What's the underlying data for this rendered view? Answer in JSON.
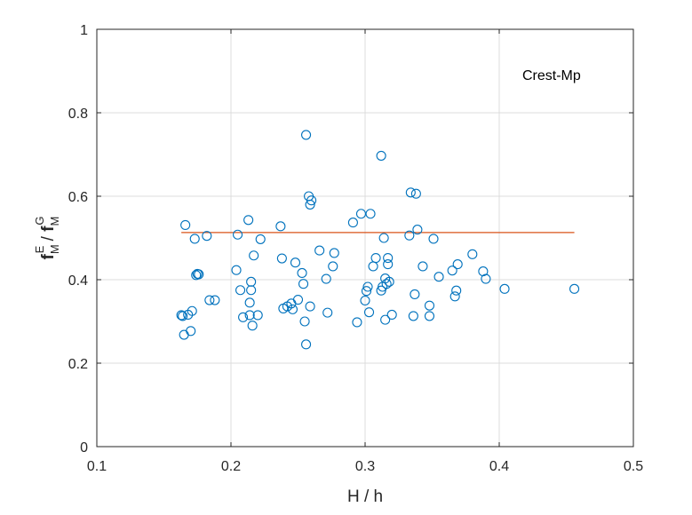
{
  "chart_data": {
    "type": "scatter",
    "xlabel": "H / h",
    "ylabel": {
      "base": "f",
      "sub1": "M",
      "sup1": "E",
      "slash": " / ",
      "sub2": "M",
      "sup2": "G"
    },
    "annotation": "Crest-Mp",
    "xlim": [
      0.1,
      0.5
    ],
    "ylim": [
      0,
      1
    ],
    "xticks": [
      0.1,
      0.2,
      0.3,
      0.4,
      0.5
    ],
    "xtick_labels": [
      "0.1",
      "0.2",
      "0.3",
      "0.4",
      "0.5"
    ],
    "yticks": [
      0,
      0.2,
      0.4,
      0.6,
      0.8,
      1
    ],
    "ytick_labels": [
      "0",
      "0.2",
      "0.4",
      "0.6",
      "0.8",
      "1"
    ],
    "grid": true,
    "colors": {
      "markers": "#0072BD",
      "line": "#D95319",
      "grid": "#dcdcdc",
      "axis": "#262626"
    },
    "fit_line": {
      "x": [
        0.163,
        0.456
      ],
      "y": [
        0.513,
        0.513
      ]
    },
    "points": [
      [
        0.163,
        0.315
      ],
      [
        0.164,
        0.313
      ],
      [
        0.165,
        0.268
      ],
      [
        0.166,
        0.531
      ],
      [
        0.168,
        0.316
      ],
      [
        0.17,
        0.277
      ],
      [
        0.171,
        0.325
      ],
      [
        0.173,
        0.498
      ],
      [
        0.174,
        0.411
      ],
      [
        0.175,
        0.414
      ],
      [
        0.176,
        0.413
      ],
      [
        0.182,
        0.505
      ],
      [
        0.184,
        0.351
      ],
      [
        0.188,
        0.351
      ],
      [
        0.204,
        0.423
      ],
      [
        0.205,
        0.508
      ],
      [
        0.207,
        0.375
      ],
      [
        0.209,
        0.31
      ],
      [
        0.213,
        0.543
      ],
      [
        0.215,
        0.395
      ],
      [
        0.215,
        0.375
      ],
      [
        0.214,
        0.345
      ],
      [
        0.214,
        0.315
      ],
      [
        0.216,
        0.29
      ],
      [
        0.217,
        0.458
      ],
      [
        0.22,
        0.315
      ],
      [
        0.222,
        0.497
      ],
      [
        0.237,
        0.528
      ],
      [
        0.238,
        0.451
      ],
      [
        0.239,
        0.331
      ],
      [
        0.242,
        0.336
      ],
      [
        0.245,
        0.343
      ],
      [
        0.246,
        0.329
      ],
      [
        0.248,
        0.441
      ],
      [
        0.25,
        0.352
      ],
      [
        0.253,
        0.416
      ],
      [
        0.254,
        0.39
      ],
      [
        0.255,
        0.3
      ],
      [
        0.256,
        0.747
      ],
      [
        0.256,
        0.245
      ],
      [
        0.258,
        0.6
      ],
      [
        0.259,
        0.58
      ],
      [
        0.26,
        0.59
      ],
      [
        0.259,
        0.336
      ],
      [
        0.266,
        0.47
      ],
      [
        0.271,
        0.402
      ],
      [
        0.272,
        0.321
      ],
      [
        0.276,
        0.432
      ],
      [
        0.277,
        0.464
      ],
      [
        0.291,
        0.537
      ],
      [
        0.294,
        0.298
      ],
      [
        0.297,
        0.558
      ],
      [
        0.3,
        0.35
      ],
      [
        0.301,
        0.373
      ],
      [
        0.302,
        0.383
      ],
      [
        0.303,
        0.322
      ],
      [
        0.304,
        0.558
      ],
      [
        0.306,
        0.432
      ],
      [
        0.308,
        0.452
      ],
      [
        0.312,
        0.697
      ],
      [
        0.312,
        0.374
      ],
      [
        0.313,
        0.383
      ],
      [
        0.314,
        0.5
      ],
      [
        0.315,
        0.403
      ],
      [
        0.315,
        0.304
      ],
      [
        0.316,
        0.39
      ],
      [
        0.317,
        0.452
      ],
      [
        0.317,
        0.437
      ],
      [
        0.318,
        0.395
      ],
      [
        0.32,
        0.316
      ],
      [
        0.333,
        0.506
      ],
      [
        0.334,
        0.609
      ],
      [
        0.336,
        0.313
      ],
      [
        0.337,
        0.365
      ],
      [
        0.338,
        0.606
      ],
      [
        0.339,
        0.52
      ],
      [
        0.343,
        0.432
      ],
      [
        0.348,
        0.338
      ],
      [
        0.348,
        0.313
      ],
      [
        0.351,
        0.498
      ],
      [
        0.355,
        0.407
      ],
      [
        0.365,
        0.422
      ],
      [
        0.367,
        0.36
      ],
      [
        0.368,
        0.374
      ],
      [
        0.369,
        0.437
      ],
      [
        0.38,
        0.461
      ],
      [
        0.388,
        0.42
      ],
      [
        0.39,
        0.402
      ],
      [
        0.404,
        0.378
      ],
      [
        0.456,
        0.378
      ]
    ]
  }
}
